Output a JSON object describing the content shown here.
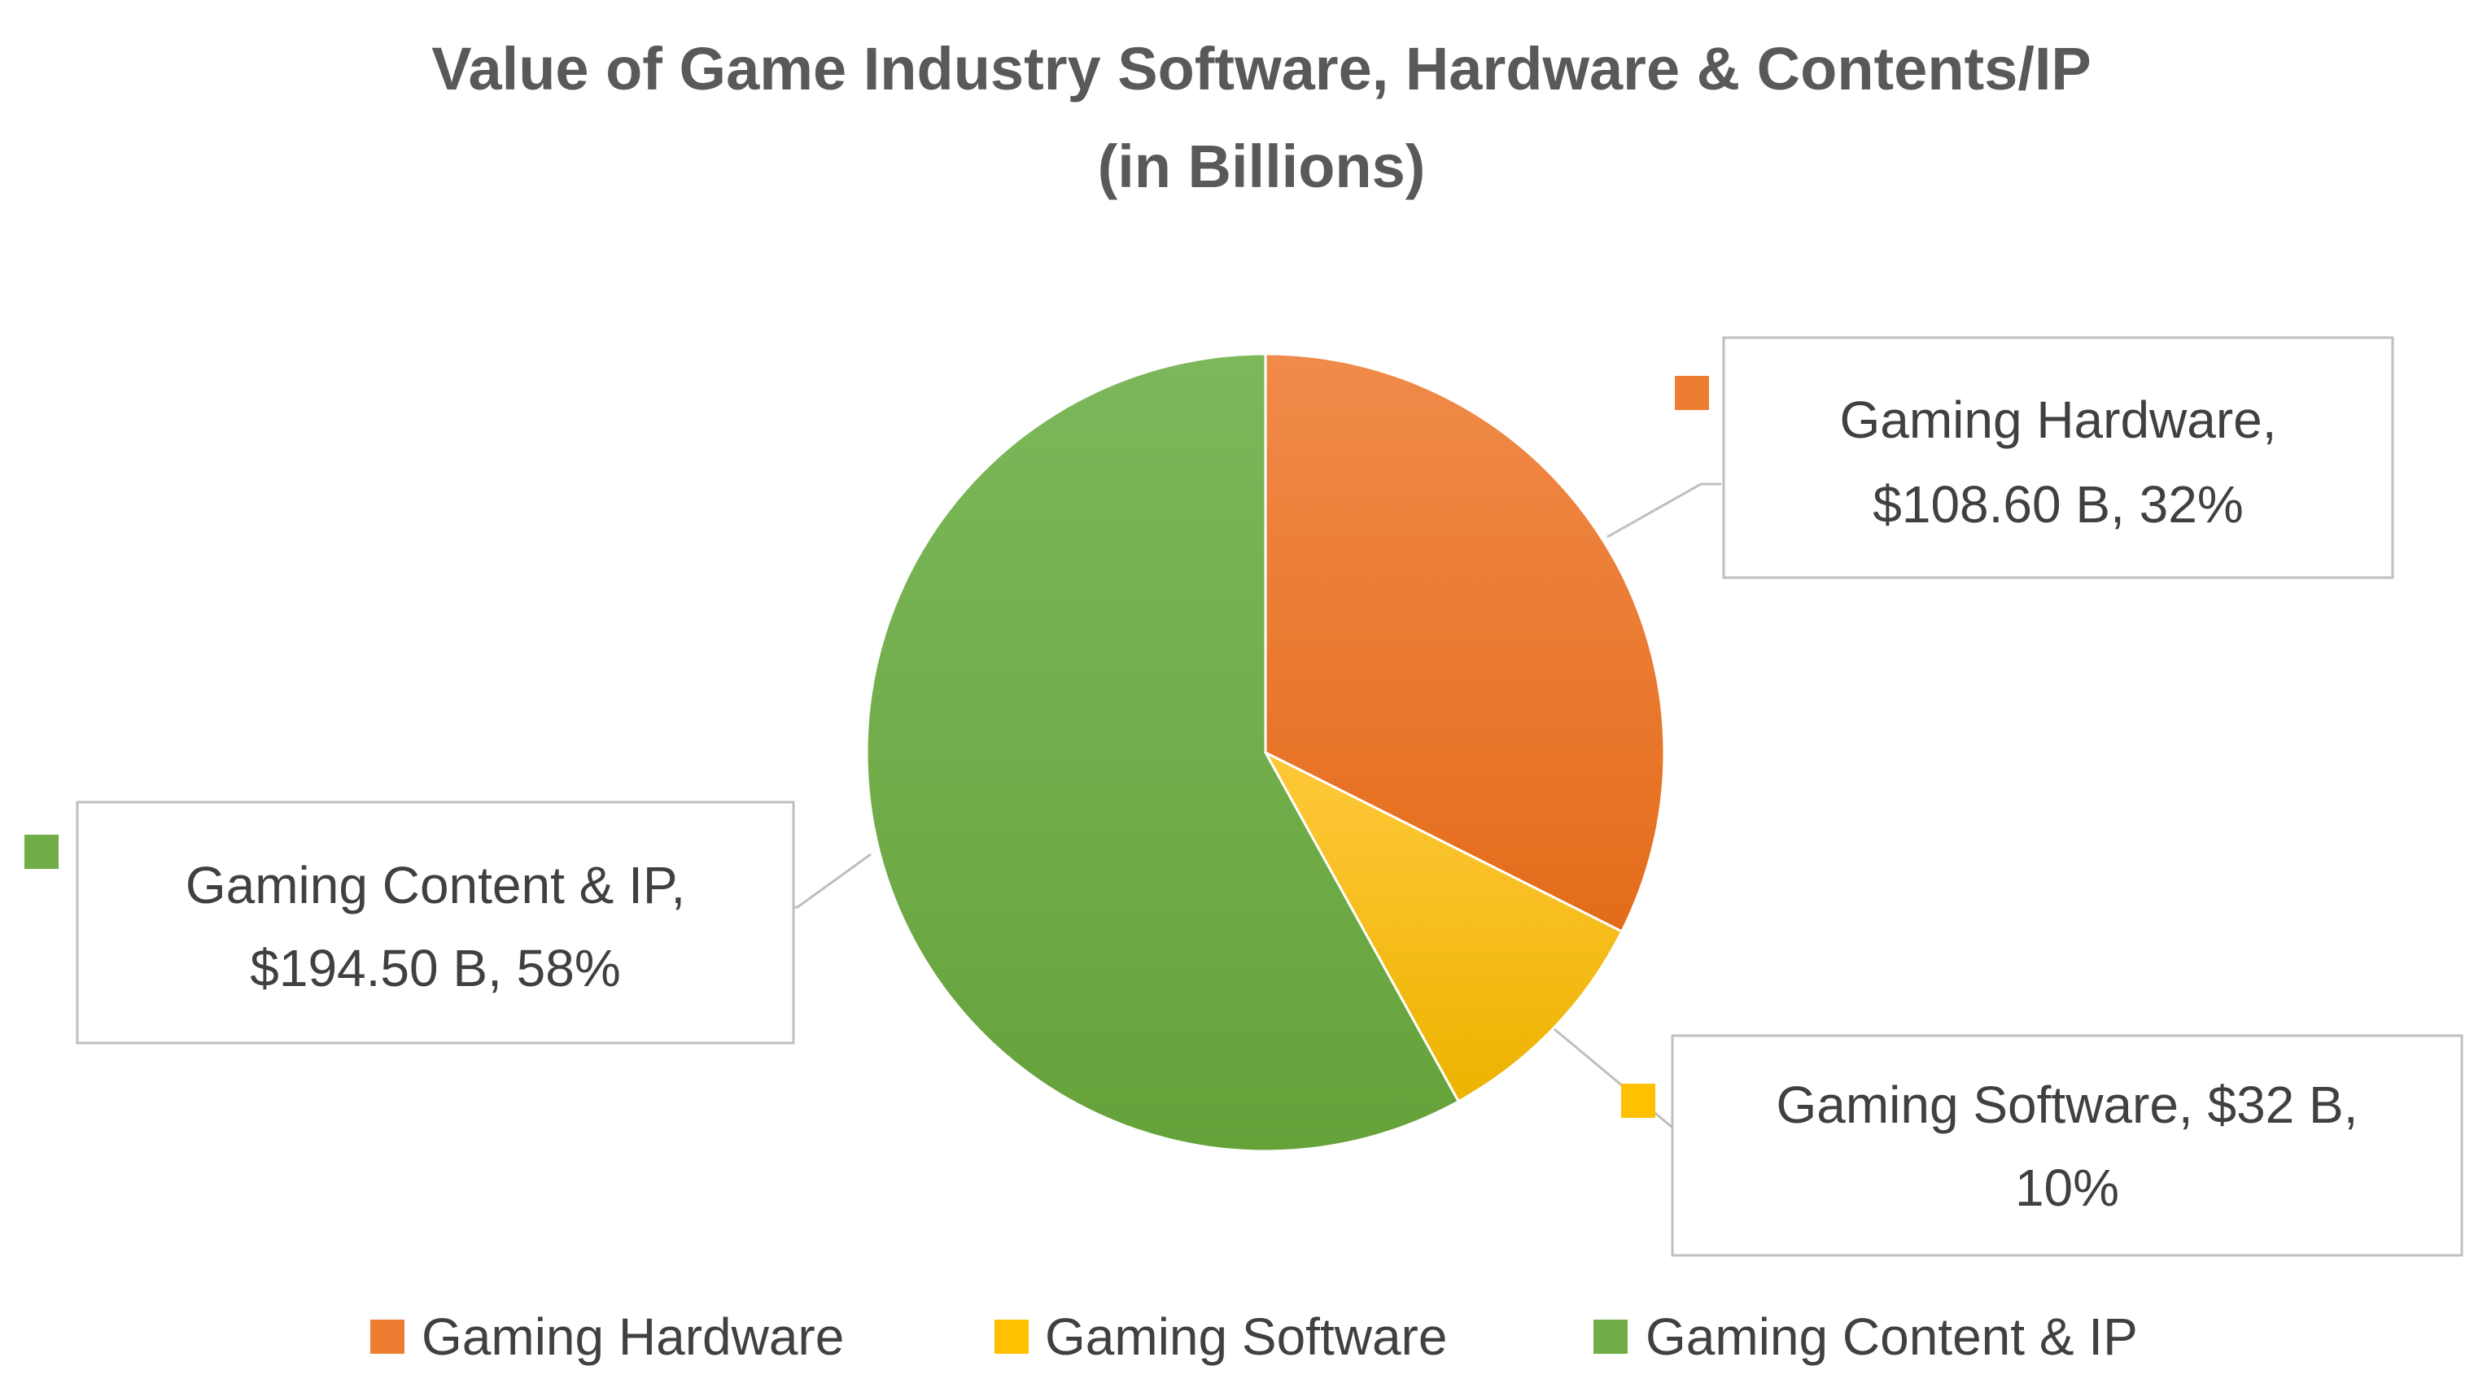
{
  "chart_data": {
    "type": "pie",
    "title_lines": [
      "Value of Game Industry Software, Hardware & Contents/IP",
      "(in Billions)"
    ],
    "slices": [
      {
        "name": "Gaming Hardware",
        "value": 108.6,
        "color": "#ED7D31",
        "label_lines": [
          "Gaming Hardware,",
          "$108.60 B, 32%"
        ]
      },
      {
        "name": "Gaming Software",
        "value": 32,
        "color": "#FFC000",
        "label_lines": [
          "Gaming Software, $32 B,",
          "10%"
        ]
      },
      {
        "name": "Gaming Content & IP",
        "value": 194.5,
        "color": "#70AD47",
        "label_lines": [
          "Gaming Content & IP,",
          "$194.50 B, 58%"
        ]
      }
    ],
    "start_angle_deg": 0,
    "direction": "clockwise",
    "legend_position": "bottom"
  }
}
